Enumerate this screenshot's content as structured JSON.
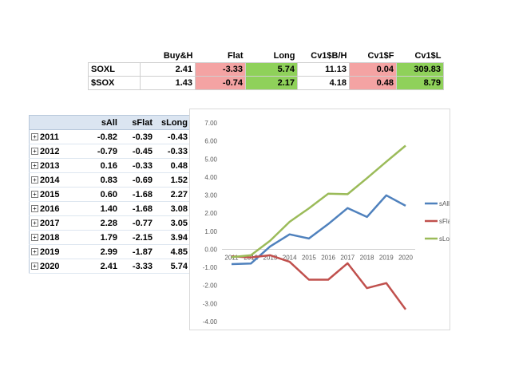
{
  "summary": {
    "headers": [
      "Buy&H",
      "Flat",
      "Long",
      "Cv1$B/H",
      "Cv1$F",
      "Cv1$L"
    ],
    "rows": [
      {
        "label": "SOXL",
        "values": [
          "2.41",
          "-3.33",
          "5.74",
          "11.13",
          "0.04",
          "309.83"
        ]
      },
      {
        "label": "$SOX",
        "values": [
          "1.43",
          "-0.74",
          "2.17",
          "4.18",
          "0.48",
          "8.79"
        ]
      }
    ],
    "highlight_colors": {
      "red": "#f4a3a3",
      "green": "#8fd15a"
    }
  },
  "pivot": {
    "headers": [
      "sAll",
      "sFlat",
      "sLong"
    ],
    "expand_icon": "plus-box-icon",
    "rows": [
      {
        "year": "2011",
        "values": [
          "-0.82",
          "-0.39",
          "-0.43"
        ]
      },
      {
        "year": "2012",
        "values": [
          "-0.79",
          "-0.45",
          "-0.33"
        ]
      },
      {
        "year": "2013",
        "values": [
          "0.16",
          "-0.33",
          "0.48"
        ]
      },
      {
        "year": "2014",
        "values": [
          "0.83",
          "-0.69",
          "1.52"
        ]
      },
      {
        "year": "2015",
        "values": [
          "0.60",
          "-1.68",
          "2.27"
        ]
      },
      {
        "year": "2016",
        "values": [
          "1.40",
          "-1.68",
          "3.08"
        ]
      },
      {
        "year": "2017",
        "values": [
          "2.28",
          "-0.77",
          "3.05"
        ]
      },
      {
        "year": "2018",
        "values": [
          "1.79",
          "-2.15",
          "3.94"
        ]
      },
      {
        "year": "2019",
        "values": [
          "2.99",
          "-1.87",
          "4.85"
        ]
      },
      {
        "year": "2020",
        "values": [
          "2.41",
          "-3.33",
          "5.74"
        ]
      }
    ]
  },
  "chart_data": {
    "type": "line",
    "categories": [
      "2011",
      "2012",
      "2013",
      "2014",
      "2015",
      "2016",
      "2017",
      "2018",
      "2019",
      "2020"
    ],
    "series": [
      {
        "name": "sAll",
        "color": "#4f81bd",
        "values": [
          -0.82,
          -0.79,
          0.16,
          0.83,
          0.6,
          1.4,
          2.28,
          1.79,
          2.99,
          2.41
        ]
      },
      {
        "name": "sFlat",
        "color": "#c0504d",
        "values": [
          -0.39,
          -0.45,
          -0.33,
          -0.69,
          -1.68,
          -1.68,
          -0.77,
          -2.15,
          -1.87,
          -3.33
        ]
      },
      {
        "name": "sLong",
        "color": "#9bbb59",
        "values": [
          -0.43,
          -0.33,
          0.48,
          1.52,
          2.27,
          3.08,
          3.05,
          3.94,
          4.85,
          5.74
        ]
      }
    ],
    "y_ticks": [
      "7.00",
      "6.00",
      "5.00",
      "4.00",
      "3.00",
      "2.00",
      "1.00",
      "0.00",
      "-1.00",
      "-2.00",
      "-3.00",
      "-4.00"
    ],
    "ylim": [
      -4,
      7
    ],
    "grid": false,
    "legend": "right",
    "title": "",
    "xlabel": "",
    "ylabel": ""
  }
}
